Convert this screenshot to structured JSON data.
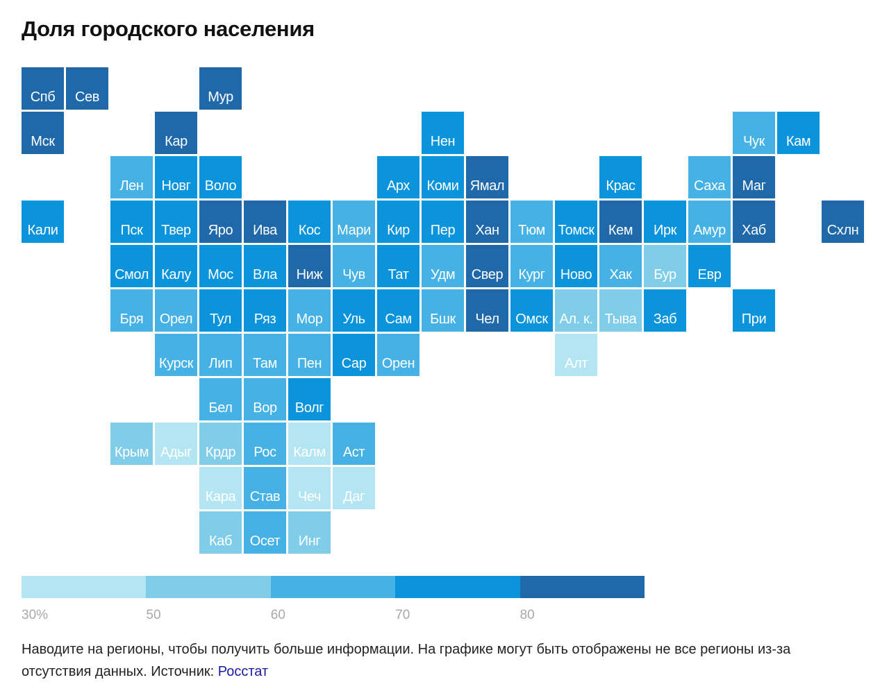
{
  "title": "Доля городского населения",
  "chart_data": {
    "type": "heatmap",
    "title": "Доля городского населения",
    "legend": {
      "placement": "bottom",
      "bins": [
        {
          "from": 30,
          "to": 50,
          "color": "#b3e5f3"
        },
        {
          "from": 50,
          "to": 60,
          "color": "#7fcde9"
        },
        {
          "from": 60,
          "to": 70,
          "color": "#45b1e5"
        },
        {
          "from": 70,
          "to": 80,
          "color": "#0b94dc"
        },
        {
          "from": 80,
          "to": 100,
          "color": "#1f69aa"
        }
      ],
      "tick_labels": [
        "30%",
        "50",
        "60",
        "70",
        "80"
      ]
    },
    "regions": [
      {
        "label": "Спб",
        "bin": 4
      },
      {
        "label": "Сев",
        "bin": 4
      },
      {
        "label": "Мур",
        "bin": 4
      },
      {
        "label": "Мск",
        "bin": 4
      },
      {
        "label": "Кар",
        "bin": 4
      },
      {
        "label": "Нен",
        "bin": 3
      },
      {
        "label": "Чук",
        "bin": 2
      },
      {
        "label": "Кам",
        "bin": 3
      },
      {
        "label": "Лен",
        "bin": 2
      },
      {
        "label": "Новг",
        "bin": 3
      },
      {
        "label": "Воло",
        "bin": 3
      },
      {
        "label": "Арх",
        "bin": 3
      },
      {
        "label": "Коми",
        "bin": 3
      },
      {
        "label": "Ямал",
        "bin": 4
      },
      {
        "label": "Крас",
        "bin": 3
      },
      {
        "label": "Саха",
        "bin": 2
      },
      {
        "label": "Маг",
        "bin": 4
      },
      {
        "label": "Кали",
        "bin": 3
      },
      {
        "label": "Пск",
        "bin": 3
      },
      {
        "label": "Твер",
        "bin": 3
      },
      {
        "label": "Яро",
        "bin": 4
      },
      {
        "label": "Ива",
        "bin": 4
      },
      {
        "label": "Кос",
        "bin": 3
      },
      {
        "label": "Мари",
        "bin": 2
      },
      {
        "label": "Кир",
        "bin": 3
      },
      {
        "label": "Пер",
        "bin": 3
      },
      {
        "label": "Хан",
        "bin": 4
      },
      {
        "label": "Тюм",
        "bin": 2
      },
      {
        "label": "Томск",
        "bin": 3
      },
      {
        "label": "Кем",
        "bin": 4
      },
      {
        "label": "Ирк",
        "bin": 3
      },
      {
        "label": "Амур",
        "bin": 2
      },
      {
        "label": "Хаб",
        "bin": 4
      },
      {
        "label": "Схлн",
        "bin": 4
      },
      {
        "label": "Смол",
        "bin": 3
      },
      {
        "label": "Калу",
        "bin": 3
      },
      {
        "label": "Мос",
        "bin": 3
      },
      {
        "label": "Вла",
        "bin": 3
      },
      {
        "label": "Ниж",
        "bin": 4
      },
      {
        "label": "Чув",
        "bin": 2
      },
      {
        "label": "Тат",
        "bin": 3
      },
      {
        "label": "Удм",
        "bin": 2
      },
      {
        "label": "Свер",
        "bin": 4
      },
      {
        "label": "Кург",
        "bin": 2
      },
      {
        "label": "Ново",
        "bin": 3
      },
      {
        "label": "Хак",
        "bin": 2
      },
      {
        "label": "Бур",
        "bin": 1
      },
      {
        "label": "Евр",
        "bin": 3
      },
      {
        "label": "Бря",
        "bin": 2
      },
      {
        "label": "Орел",
        "bin": 2
      },
      {
        "label": "Тул",
        "bin": 3
      },
      {
        "label": "Ряз",
        "bin": 3
      },
      {
        "label": "Мор",
        "bin": 2
      },
      {
        "label": "Уль",
        "bin": 3
      },
      {
        "label": "Сам",
        "bin": 3
      },
      {
        "label": "Бшк",
        "bin": 2
      },
      {
        "label": "Чел",
        "bin": 4
      },
      {
        "label": "Омск",
        "bin": 3
      },
      {
        "label": "Ал. к.",
        "bin": 1
      },
      {
        "label": "Тыва",
        "bin": 1
      },
      {
        "label": "Заб",
        "bin": 3
      },
      {
        "label": "При",
        "bin": 3
      },
      {
        "label": "Курск",
        "bin": 2
      },
      {
        "label": "Лип",
        "bin": 2
      },
      {
        "label": "Там",
        "bin": 2
      },
      {
        "label": "Пен",
        "bin": 2
      },
      {
        "label": "Сар",
        "bin": 3
      },
      {
        "label": "Орен",
        "bin": 2
      },
      {
        "label": "Алт",
        "bin": 0
      },
      {
        "label": "Бел",
        "bin": 2
      },
      {
        "label": "Вор",
        "bin": 2
      },
      {
        "label": "Волг",
        "bin": 3
      },
      {
        "label": "Крым",
        "bin": 1
      },
      {
        "label": "Адыг",
        "bin": 0
      },
      {
        "label": "Крдр",
        "bin": 1
      },
      {
        "label": "Рос",
        "bin": 2
      },
      {
        "label": "Калм",
        "bin": 0
      },
      {
        "label": "Аст",
        "bin": 2
      },
      {
        "label": "Кара",
        "bin": 0
      },
      {
        "label": "Став",
        "bin": 2
      },
      {
        "label": "Чеч",
        "bin": 0
      },
      {
        "label": "Даг",
        "bin": 0
      },
      {
        "label": "Каб",
        "bin": 1
      },
      {
        "label": "Осет",
        "bin": 2
      },
      {
        "label": "Инг",
        "bin": 1
      }
    ]
  },
  "footer": {
    "text": "Наводите на регионы, чтобы получить больше информации. На графике могут быть отображены не все регионы из-за отсутствия данных. Источник: ",
    "source_link": "Росстат"
  }
}
